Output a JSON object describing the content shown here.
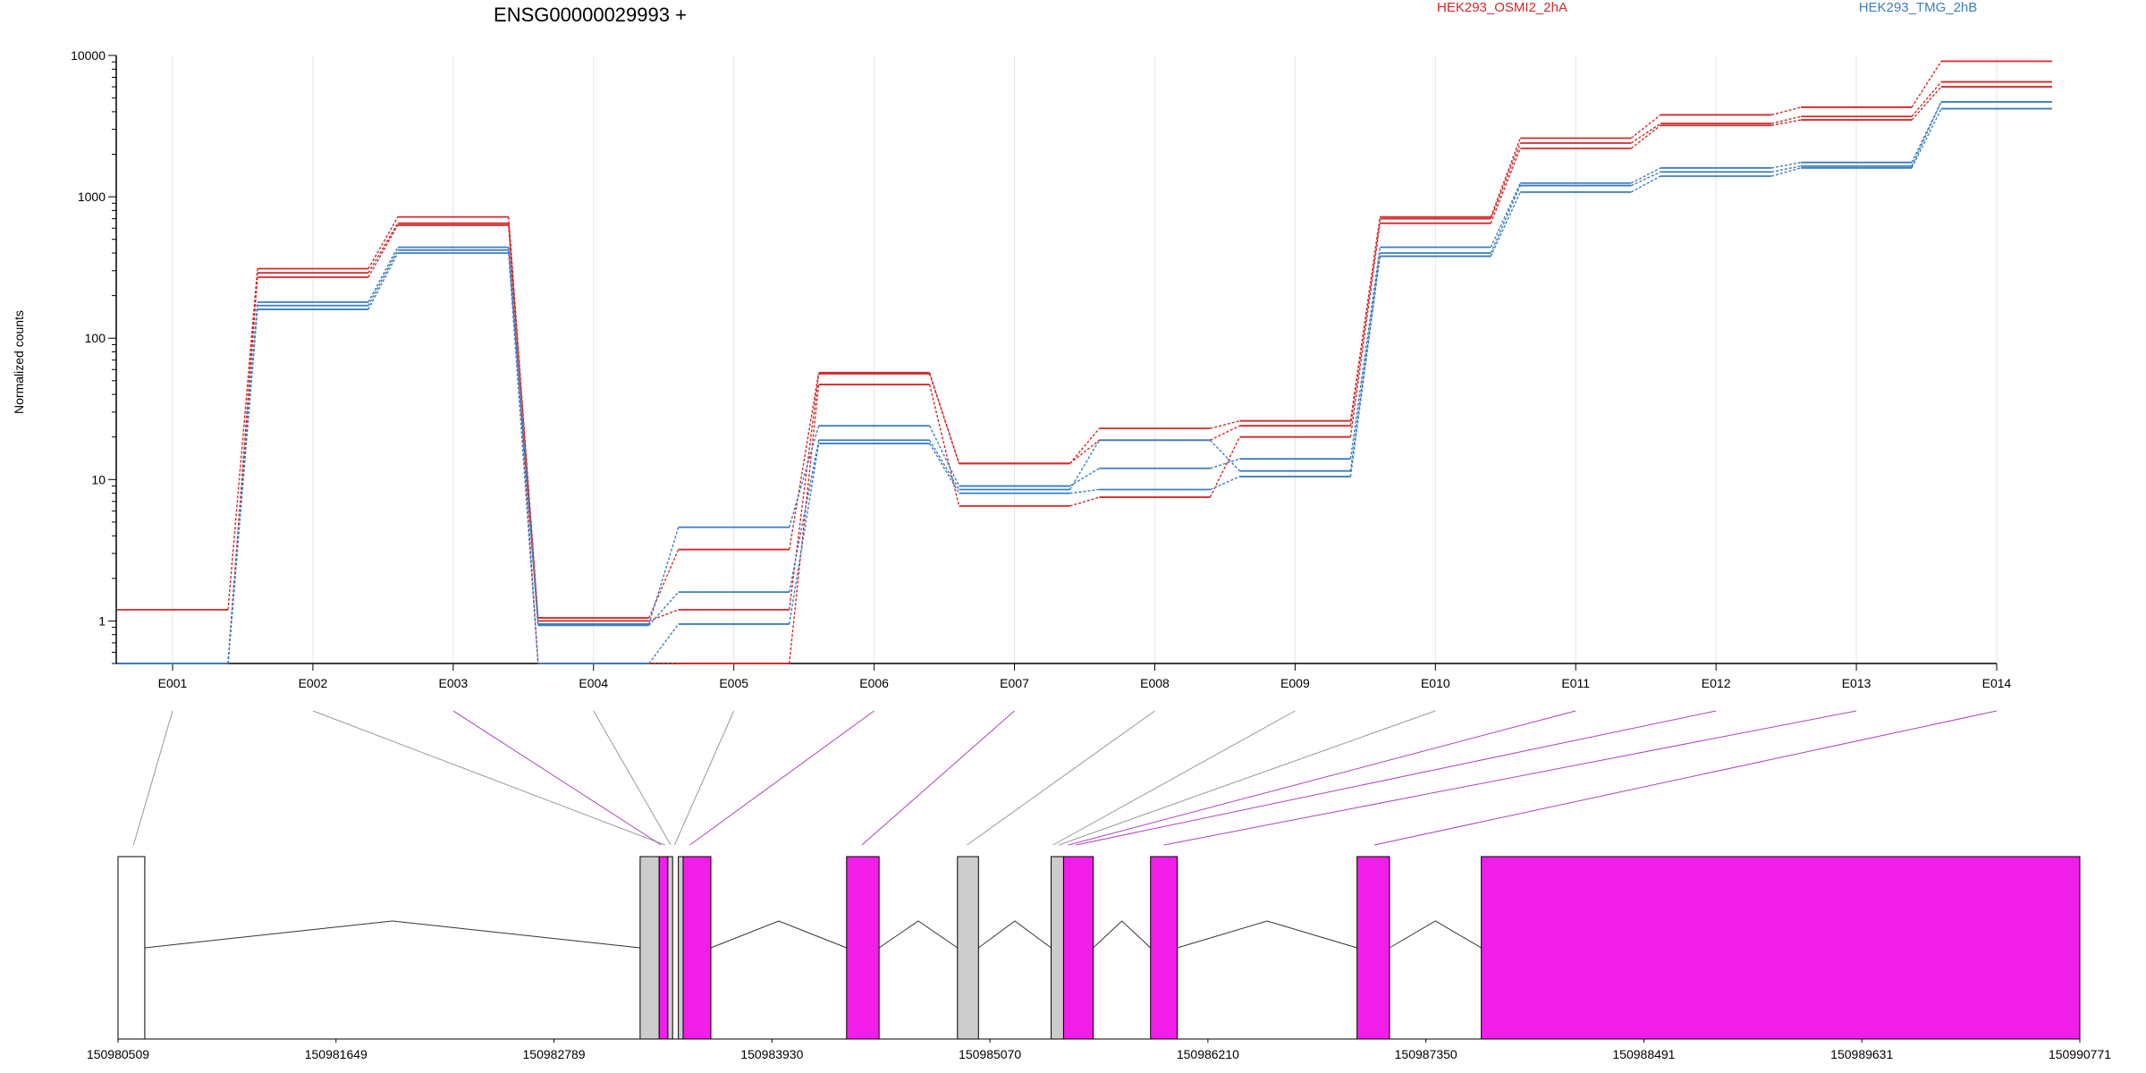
{
  "chart_data": {
    "type": "line",
    "title": "ENSG00000029993 +",
    "ylabel": "Normalized counts",
    "yscale": "log",
    "ylim": [
      0.5,
      10000
    ],
    "yticks": [
      "1",
      "10",
      "100",
      "1000",
      "10000"
    ],
    "grid": true,
    "legend_position": "top",
    "categories": [
      "E001",
      "E002",
      "E003",
      "E004",
      "E005",
      "E006",
      "E007",
      "E008",
      "E009",
      "E010",
      "E011",
      "E012",
      "E013",
      "E014"
    ],
    "series": [
      {
        "name": "HEK293_OSMI2_2hA",
        "color": "#d62728",
        "values": [
          1.2,
          310,
          720,
          1.05,
          3.2,
          57,
          13,
          23,
          26,
          720,
          2600,
          3800,
          4300,
          9100
        ]
      },
      {
        "name": "HEK293_OSMI2_2hA",
        "color": "#d62728",
        "values": [
          0.5,
          290,
          650,
          1.0,
          1.2,
          56,
          13,
          19,
          24,
          700,
          2400,
          3300,
          3700,
          6500
        ]
      },
      {
        "name": "HEK293_OSMI2_2hA",
        "color": "#d62728",
        "values": [
          0.5,
          270,
          630,
          0.5,
          0.5,
          47,
          6.5,
          7.5,
          20,
          650,
          2200,
          3200,
          3500,
          6000
        ]
      },
      {
        "name": "HEK293_TMG_2hB",
        "color": "#3a7dc0",
        "values": [
          0.5,
          180,
          440,
          0.95,
          4.6,
          24,
          9,
          12,
          14,
          440,
          1250,
          1600,
          1750,
          4700
        ]
      },
      {
        "name": "HEK293_TMG_2hB",
        "color": "#3a7dc0",
        "values": [
          0.5,
          170,
          420,
          0.93,
          1.6,
          19,
          8.5,
          19,
          11.5,
          400,
          1200,
          1500,
          1650,
          4700
        ]
      },
      {
        "name": "HEK293_TMG_2hB",
        "color": "#3a7dc0",
        "values": [
          0.5,
          160,
          400,
          0.5,
          0.95,
          18,
          8,
          8.5,
          10.5,
          380,
          1080,
          1400,
          1600,
          4200
        ]
      }
    ],
    "legend": [
      {
        "label": "HEK293_OSMI2_2hA",
        "color": "#d62728"
      },
      {
        "label": "HEK293_TMG_2hB",
        "color": "#3a7dc0"
      }
    ],
    "gene_model": {
      "genomic_range": [
        150980509,
        150990771
      ],
      "genomic_ticks": [
        "150980509",
        "150981649",
        "150982789",
        "150983930",
        "150985070",
        "150986210",
        "150987350",
        "150988491",
        "150989631",
        "150990771"
      ],
      "exon_colors": {
        "tested": "#f01ee8",
        "not_tested": "#cccccc",
        "utr": "#ffffff"
      },
      "connector_colors": {
        "tested": "#b040c0",
        "not_tested": "#999999"
      },
      "exons": [
        {
          "start": 150980509,
          "end": 150980649,
          "kind": "utr"
        },
        {
          "start": 150983240,
          "end": 150983340,
          "kind": "not_tested"
        },
        {
          "start": 150983340,
          "end": 150983385,
          "kind": "tested"
        },
        {
          "start": 150983385,
          "end": 150983410,
          "kind": "not_tested"
        },
        {
          "start": 150983440,
          "end": 150983465,
          "kind": "not_tested"
        },
        {
          "start": 150983465,
          "end": 150983610,
          "kind": "tested"
        },
        {
          "start": 150984320,
          "end": 150984490,
          "kind": "tested"
        },
        {
          "start": 150984900,
          "end": 150985010,
          "kind": "not_tested"
        },
        {
          "start": 150985390,
          "end": 150985455,
          "kind": "not_tested"
        },
        {
          "start": 150985455,
          "end": 150985610,
          "kind": "tested"
        },
        {
          "start": 150985910,
          "end": 150986050,
          "kind": "tested"
        },
        {
          "start": 150986990,
          "end": 150987160,
          "kind": "tested"
        },
        {
          "start": 150987640,
          "end": 150990771,
          "kind": "tested"
        }
      ],
      "introns": [
        [
          150980649,
          150983240
        ],
        [
          150983610,
          150984320
        ],
        [
          150984490,
          150984900
        ],
        [
          150985010,
          150985390
        ],
        [
          150985610,
          150985910
        ],
        [
          150986050,
          150986990
        ],
        [
          150987160,
          150987640
        ]
      ],
      "exon_links": [
        {
          "exon": "E001",
          "pos": 150980590,
          "tested": false
        },
        {
          "exon": "E002",
          "pos": 150983370,
          "tested": false
        },
        {
          "exon": "E003",
          "pos": 150983350,
          "tested": true
        },
        {
          "exon": "E004",
          "pos": 150983400,
          "tested": false
        },
        {
          "exon": "E005",
          "pos": 150983420,
          "tested": false
        },
        {
          "exon": "E006",
          "pos": 150983500,
          "tested": true
        },
        {
          "exon": "E007",
          "pos": 150984400,
          "tested": true
        },
        {
          "exon": "E008",
          "pos": 150984950,
          "tested": false
        },
        {
          "exon": "E009",
          "pos": 150985400,
          "tested": false
        },
        {
          "exon": "E010",
          "pos": 150985430,
          "tested": false
        },
        {
          "exon": "E011",
          "pos": 150985480,
          "tested": true
        },
        {
          "exon": "E012",
          "pos": 150985520,
          "tested": true
        },
        {
          "exon": "E013",
          "pos": 150985980,
          "tested": true
        },
        {
          "exon": "E014",
          "pos": 150987080,
          "tested": true
        }
      ]
    }
  }
}
